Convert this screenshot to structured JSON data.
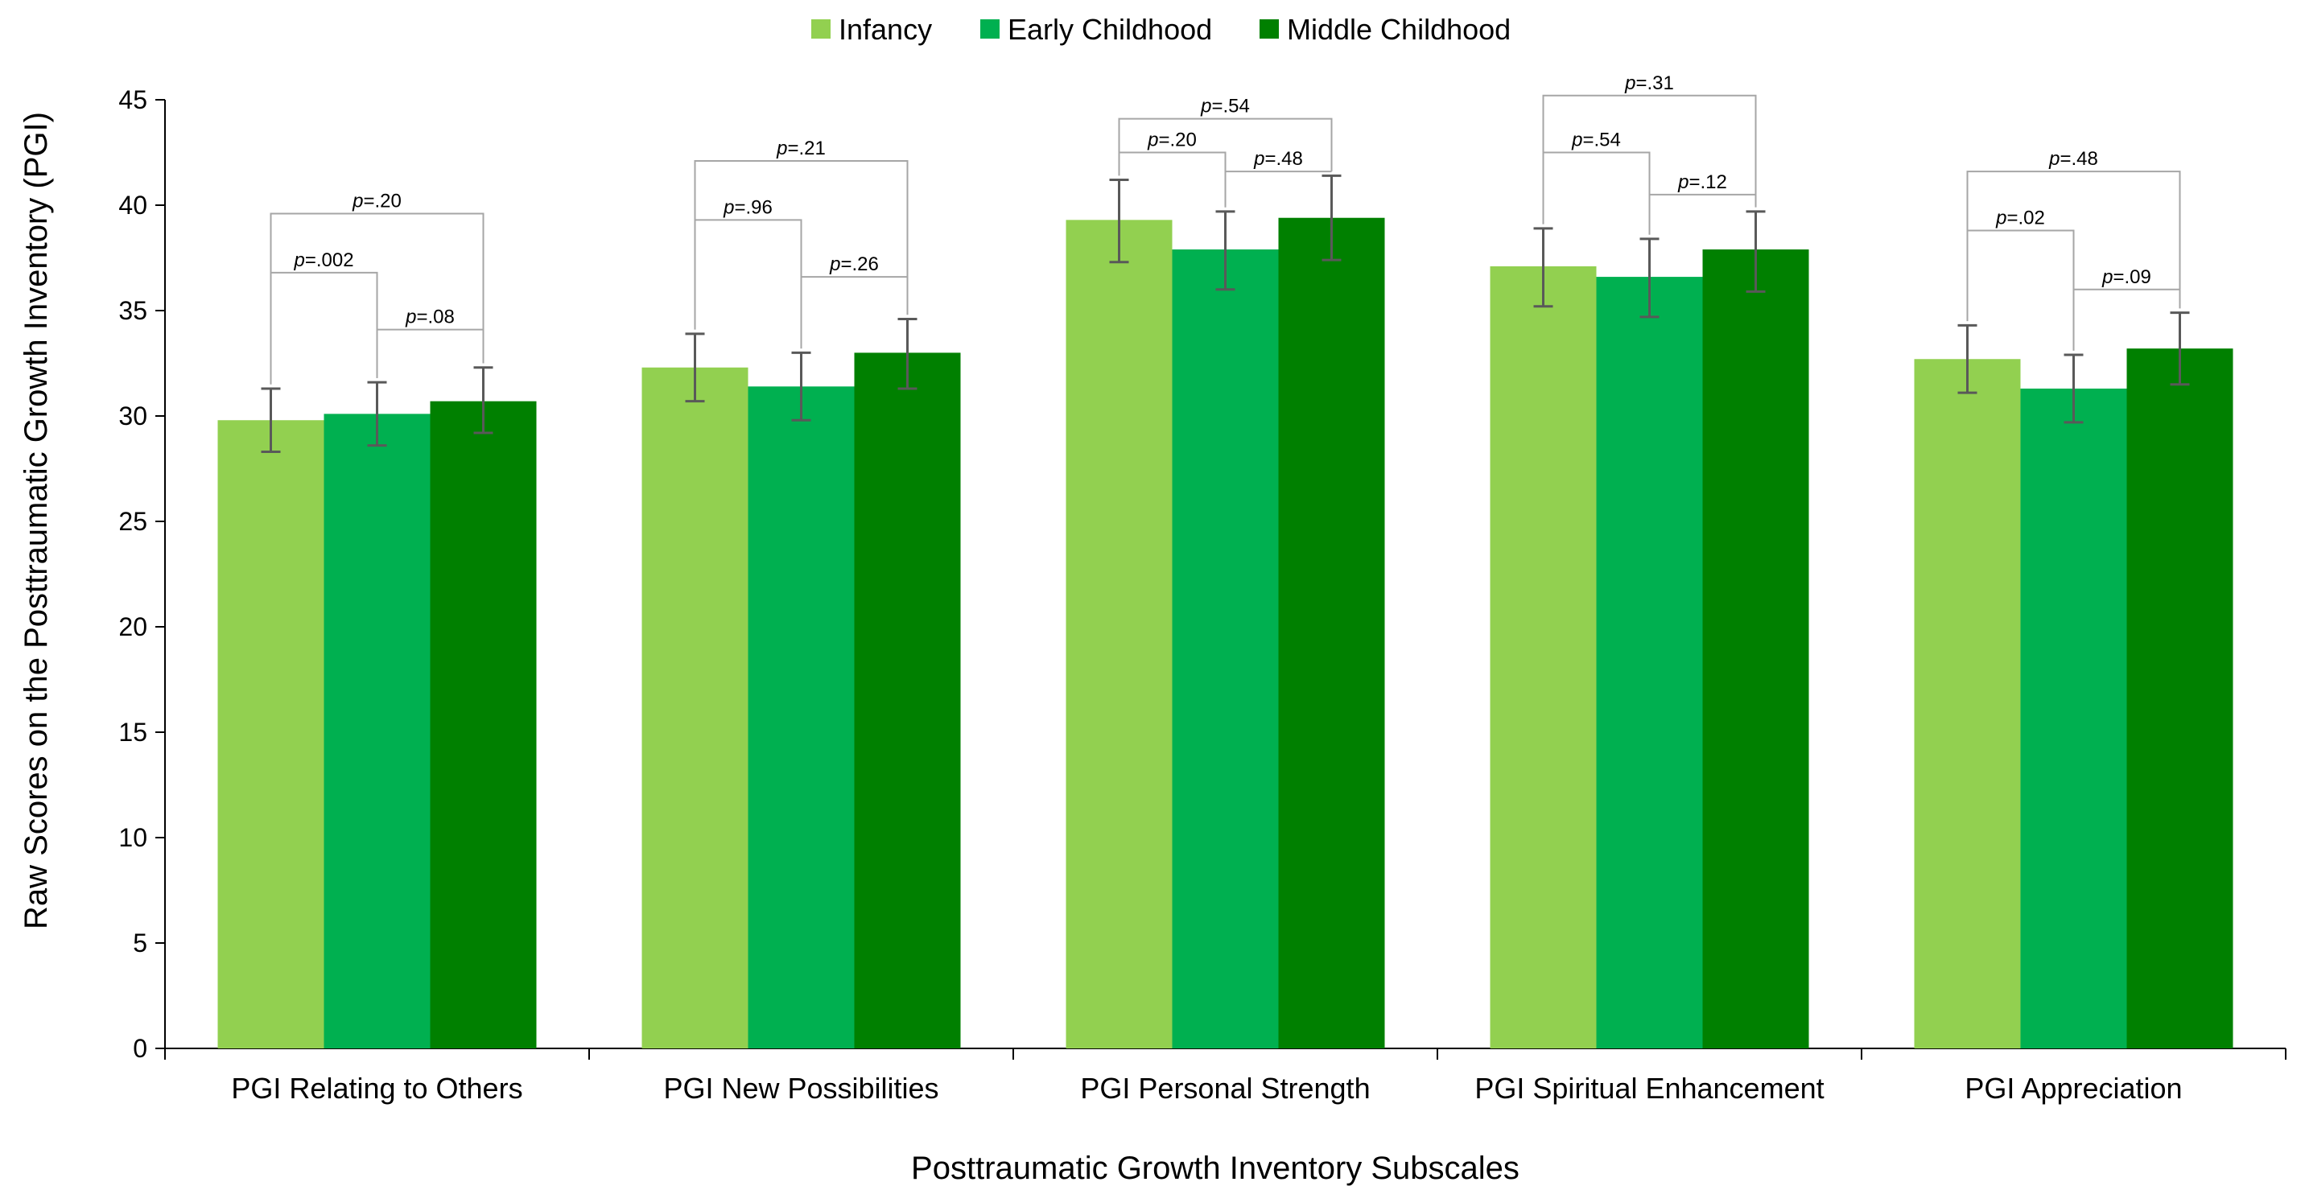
{
  "chart_data": {
    "type": "bar",
    "title": "",
    "xlabel": "Posttraumatic Growth Inventory Subscales",
    "ylabel": "Raw Scores on the Posttraumatic Growth Inventory (PGI)",
    "ylim": [
      0,
      45
    ],
    "yticks": [
      0,
      5,
      10,
      15,
      20,
      25,
      30,
      35,
      40,
      45
    ],
    "grid": false,
    "legend_position": "top-center",
    "categories": [
      "PGI Relating to Others",
      "PGI New Possibilities",
      "PGI Personal Strength",
      "PGI Spiritual Enhancement",
      "PGI Appreciation"
    ],
    "series": [
      {
        "name": "Infancy",
        "color": "#92D050",
        "values": [
          29.8,
          32.3,
          39.3,
          37.1,
          32.7
        ],
        "error_low": [
          28.3,
          30.7,
          37.3,
          35.2,
          31.1
        ],
        "error_high": [
          31.3,
          33.9,
          41.2,
          38.9,
          34.3
        ]
      },
      {
        "name": "Early Childhood",
        "color": "#00B050",
        "values": [
          30.1,
          31.4,
          37.9,
          36.6,
          31.3
        ],
        "error_low": [
          28.6,
          29.8,
          36.0,
          34.7,
          29.7
        ],
        "error_high": [
          31.6,
          33.0,
          39.7,
          38.4,
          32.9
        ]
      },
      {
        "name": "Middle Childhood",
        "color": "#008000",
        "values": [
          30.7,
          33.0,
          39.4,
          37.9,
          33.2
        ],
        "error_low": [
          29.2,
          31.3,
          37.4,
          35.9,
          31.5
        ],
        "error_high": [
          32.3,
          34.6,
          41.4,
          39.7,
          34.9
        ]
      }
    ],
    "significance": [
      {
        "p12": ".002",
        "p23": ".08",
        "p13": ".20",
        "y12": 36.8,
        "y23": 34.1,
        "y13": 39.6
      },
      {
        "p12": ".96",
        "p23": ".26",
        "p13": ".21",
        "y12": 39.3,
        "y23": 36.6,
        "y13": 42.1
      },
      {
        "p12": ".20",
        "p23": ".48",
        "p13": ".54",
        "y12": 42.5,
        "y23": 41.6,
        "y13": 44.1
      },
      {
        "p12": ".54",
        "p23": ".12",
        "p13": ".31",
        "y12": 42.5,
        "y23": 40.5,
        "y13": 45.2
      },
      {
        "p12": ".02",
        "p23": ".09",
        "p13": ".48",
        "y12": 38.8,
        "y23": 36.0,
        "y13": 41.6
      }
    ],
    "p_prefix": "p"
  }
}
